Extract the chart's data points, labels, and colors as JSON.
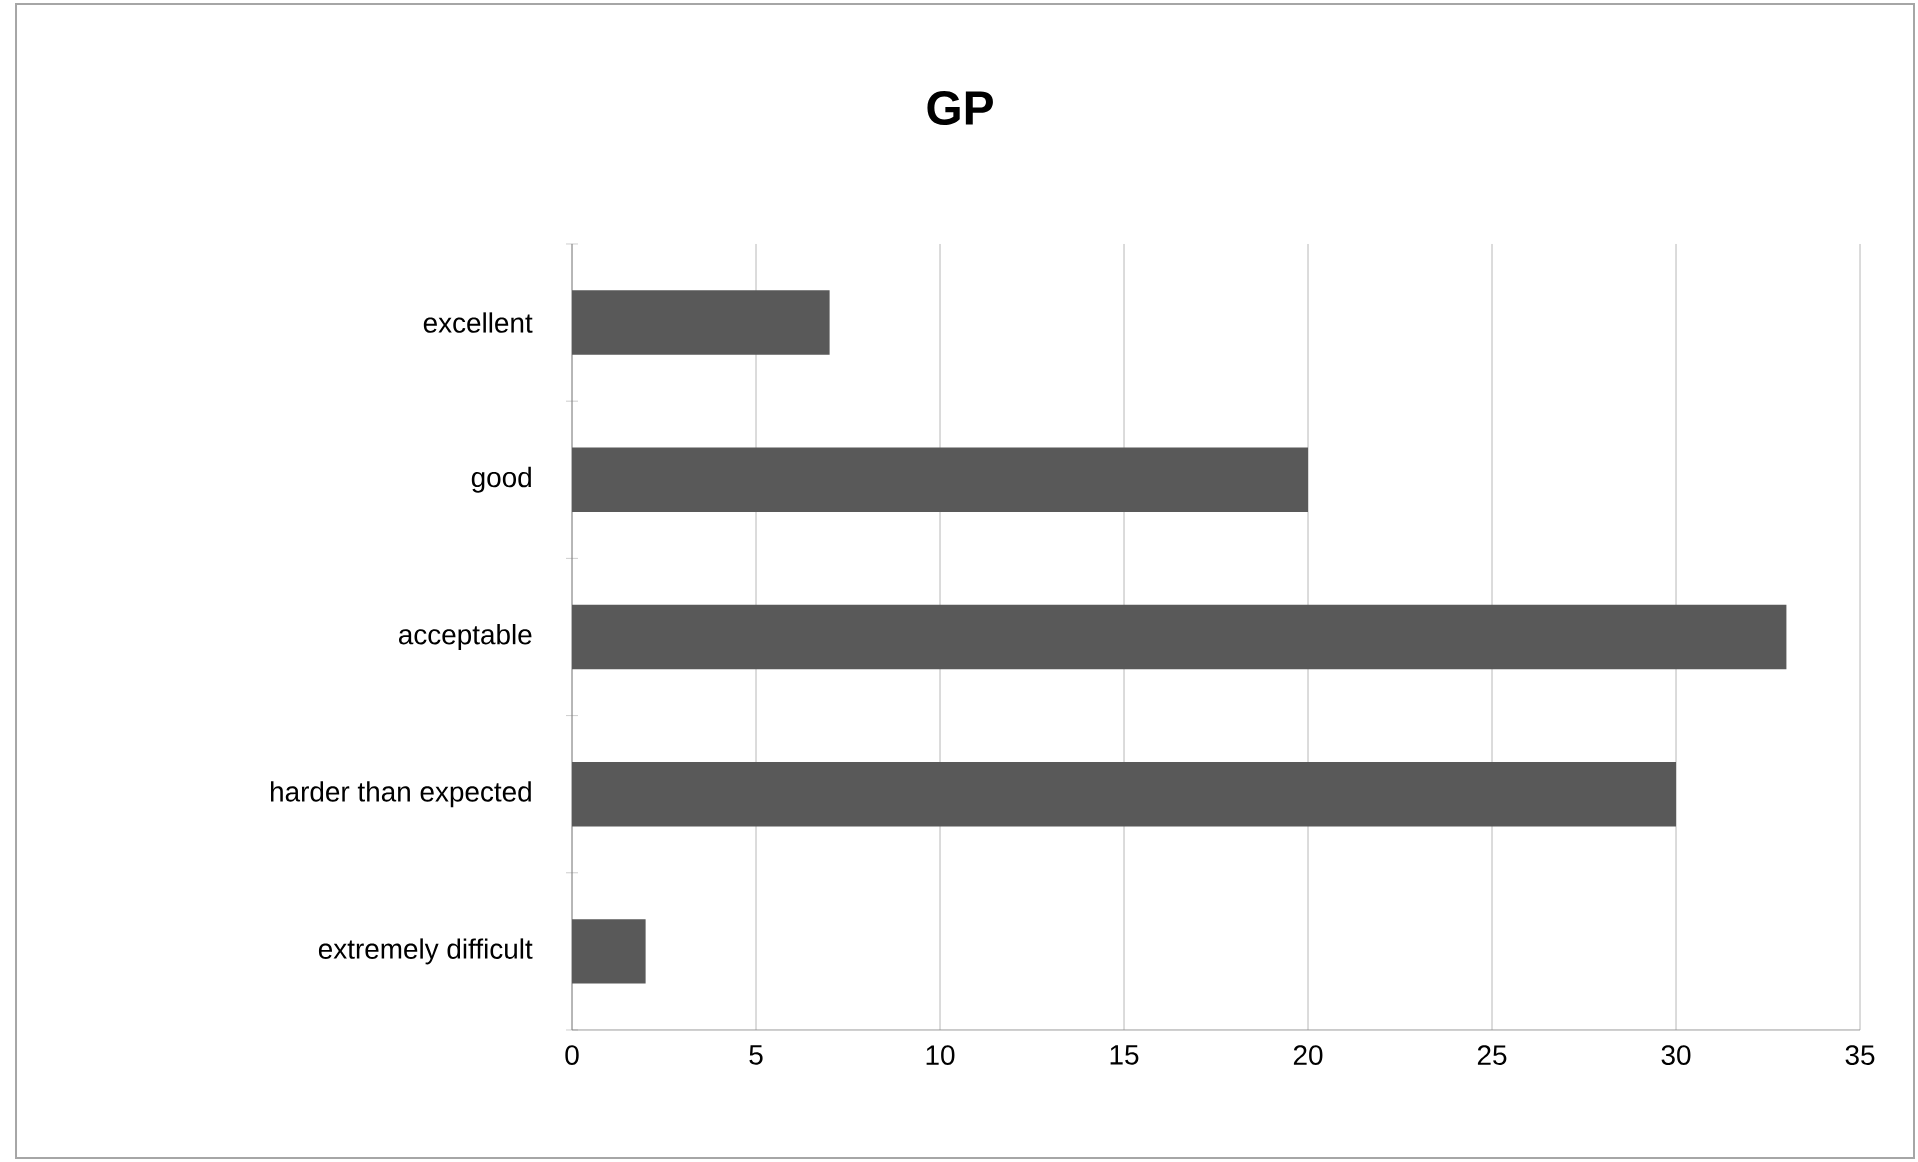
{
  "chart_data": {
    "type": "bar",
    "orientation": "horizontal",
    "title": "GP",
    "categories": [
      "excellent",
      "good",
      "acceptable",
      "harder than expected",
      "extremely difficult"
    ],
    "values": [
      7,
      20,
      33,
      30,
      2
    ],
    "color": "#595959",
    "xlim": [
      0,
      35
    ],
    "xticks": [
      0,
      5,
      10,
      15,
      20,
      25,
      30,
      35
    ],
    "grid": "x"
  }
}
